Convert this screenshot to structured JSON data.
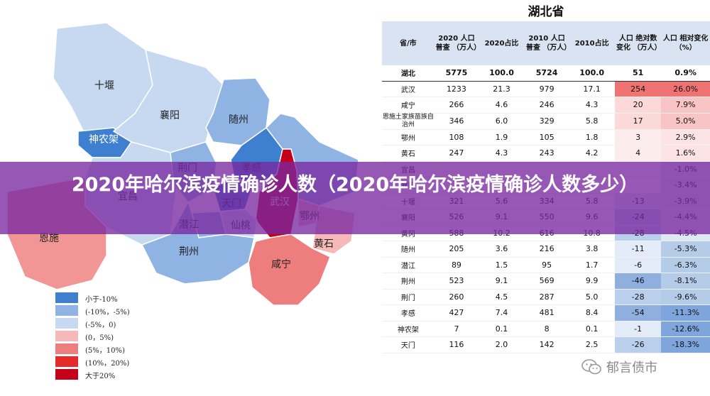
{
  "map": {
    "labels": [
      "十堰",
      "襄阳",
      "随州",
      "神农架",
      "荆门",
      "孝感",
      "天门",
      "武汉",
      "鄂州",
      "潜江",
      "仙桃",
      "荆州",
      "黄石",
      "咸宁",
      "宜昌",
      "恩施"
    ],
    "legend": [
      {
        "label": "小于-10%",
        "color": "#3f7fcf"
      },
      {
        "label": "(-10%，-5%)",
        "color": "#8fb4e3"
      },
      {
        "label": "(-5%，0)",
        "color": "#c6d9f0"
      },
      {
        "label": "(0，5%)",
        "color": "#f6b8b8"
      },
      {
        "label": "(5%，10%)",
        "color": "#ee7d7d"
      },
      {
        "label": "(10%，20%)",
        "color": "#e52a2a"
      },
      {
        "label": "大于20%",
        "color": "#c4001a"
      }
    ]
  },
  "table": {
    "title": "湖北省",
    "headers": [
      "省/市",
      "2020 人口普查 （万人）",
      "2020占比",
      "2010 人口普查 （万人）",
      "2010占比",
      "人口 绝对数 变化 （万人）",
      "人口 相对变化 （%）"
    ],
    "rows": [
      [
        "湖北",
        "5775",
        "100.0",
        "5724",
        "100.0",
        "51",
        "0.9%"
      ],
      [
        "武汉",
        "1233",
        "21.3",
        "979",
        "17.1",
        "254",
        "26.0%"
      ],
      [
        "咸宁",
        "266",
        "4.6",
        "246",
        "4.3",
        "20",
        "7.9%"
      ],
      [
        "恩施土家族苗族自治州",
        "346",
        "6.0",
        "329",
        "5.8",
        "17",
        "5.0%"
      ],
      [
        "鄂州",
        "108",
        "1.9",
        "105",
        "1.8",
        "3",
        "2.9%"
      ],
      [
        "黄石",
        "247",
        "4.3",
        "243",
        "4.2",
        "4",
        "1.6%"
      ],
      [
        "宜昌",
        "",
        "",
        "",
        "",
        "",
        "-1.0%"
      ],
      [
        "襄阳",
        "",
        "",
        "",
        "",
        "",
        "-3.4%"
      ],
      [
        "十堰",
        "321",
        "5.6",
        "334",
        "5.8",
        "-13",
        "-3.9%"
      ],
      [
        "襄阳",
        "526",
        "9.1",
        "550",
        "9.6",
        "-24",
        "-4.4%"
      ],
      [
        "黄冈",
        "588",
        "10.2",
        "616",
        "10.8",
        "-28",
        "-4.5%"
      ],
      [
        "随州",
        "205",
        "3.6",
        "216",
        "3.8",
        "-11",
        "-5.3%"
      ],
      [
        "潜江",
        "89",
        "1.5",
        "95",
        "1.7",
        "-6",
        "-6.3%"
      ],
      [
        "荆州",
        "523",
        "9.1",
        "569",
        "9.9",
        "-46",
        "-8.1%"
      ],
      [
        "荆门",
        "260",
        "4.5",
        "287",
        "5.0",
        "-28",
        "-9.6%"
      ],
      [
        "孝感",
        "427",
        "7.4",
        "481",
        "8.4",
        "-54",
        "-11.3%"
      ],
      [
        "神农架",
        "7",
        "0.1",
        "8",
        "0.1",
        "-1",
        "-12.6%"
      ],
      [
        "天门",
        "116",
        "2.0",
        "142",
        "2.5",
        "-26",
        "-18.3%"
      ]
    ]
  },
  "banner": {
    "title": "2020年哈尔滨疫情确诊人数（2020年哈尔滨疫情确诊人数多少）"
  },
  "watermark": {
    "text": "郁言债市"
  }
}
